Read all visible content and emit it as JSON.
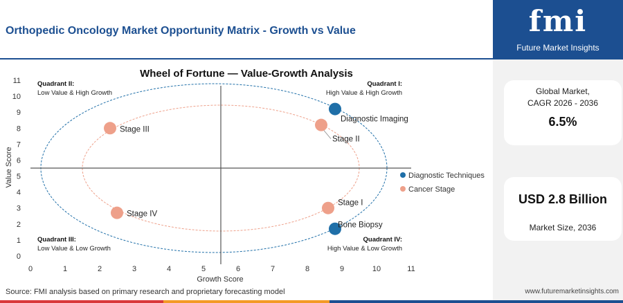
{
  "header": {
    "title": "Orthopedic Oncology Market Opportunity Matrix - Growth vs Value"
  },
  "sidebar": {
    "logo_text": "fmi",
    "logo_sub": "Future Market Insights",
    "cagr_label_1": "Global Market,",
    "cagr_label_2": "CAGR 2026 - 2036",
    "cagr_value": "6.5%",
    "size_value": "USD 2.8 Billion",
    "size_label": "Market Size, 2036",
    "website": "www.futuremarketinsights.com"
  },
  "footer": {
    "source": "Source: FMI analysis based on primary research and proprietary forecasting model"
  },
  "colors": {
    "brand_blue": "#1c4f91",
    "techniques": "#1f6fa8",
    "stage": "#eea08a",
    "bar_red": "#d9393b",
    "bar_orange": "#f39a27",
    "bar_blue": "#1c4f91"
  },
  "chart_data": {
    "type": "scatter",
    "title": "Wheel of Fortune — Value-Growth Analysis",
    "xlabel": "Growth Score",
    "ylabel": "Value Score",
    "xlim": [
      0,
      11
    ],
    "ylim": [
      0,
      11
    ],
    "xticks": [
      "0",
      "1",
      "2",
      "3",
      "4",
      "5",
      "6",
      "7",
      "8",
      "9",
      "10",
      "11"
    ],
    "yticks": [
      "0",
      "1",
      "2",
      "3",
      "4",
      "5",
      "6",
      "7",
      "8",
      "9",
      "10",
      "11"
    ],
    "divider": {
      "x": 5.5,
      "y": 5.5
    },
    "grid": false,
    "legend_position": "right",
    "quadrants": [
      {
        "name": "Quadrant II:",
        "desc": "Low Value & High Growth",
        "pos": "top-left"
      },
      {
        "name": "Quadrant I:",
        "desc": "High Value & High Growth",
        "pos": "top-right"
      },
      {
        "name": "Quadrant III:",
        "desc": "Low Value & Low Growth",
        "pos": "bottom-left"
      },
      {
        "name": "Quadrant IV:",
        "desc": "High Value & Low Growth",
        "pos": "bottom-right"
      }
    ],
    "series": [
      {
        "name": "Diagnostic Techniques",
        "color": "#1f6fa8",
        "points": [
          {
            "label": "Diagnostic Imaging",
            "x": 8.8,
            "y": 9.2
          },
          {
            "label": "Bone Biopsy",
            "x": 8.8,
            "y": 1.7
          }
        ]
      },
      {
        "name": "Cancer Stage",
        "color": "#eea08a",
        "points": [
          {
            "label": "Stage II",
            "x": 8.4,
            "y": 8.2
          },
          {
            "label": "Stage III",
            "x": 2.3,
            "y": 8.0
          },
          {
            "label": "Stage I",
            "x": 8.6,
            "y": 3.0
          },
          {
            "label": "Stage IV",
            "x": 2.5,
            "y": 2.7
          }
        ]
      }
    ]
  }
}
